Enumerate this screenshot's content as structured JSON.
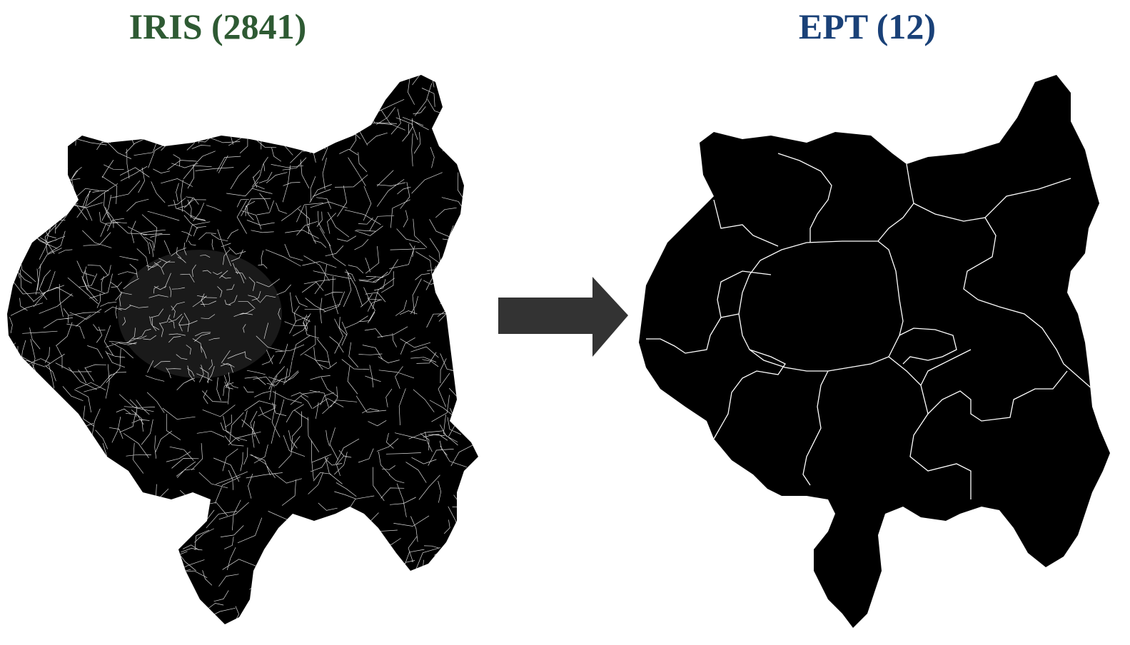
{
  "left_panel": {
    "title": "IRIS (2841)",
    "title_color": "#2e5a33",
    "map_fill": "#000000",
    "boundary_color": "#ffffff",
    "unit_count": 2841
  },
  "right_panel": {
    "title": "EPT (12)",
    "title_color": "#1a4178",
    "map_fill": "#000000",
    "boundary_color": "#ffffff",
    "unit_count": 12
  },
  "arrow": {
    "icon": "right-arrow-icon",
    "color": "#333333"
  }
}
